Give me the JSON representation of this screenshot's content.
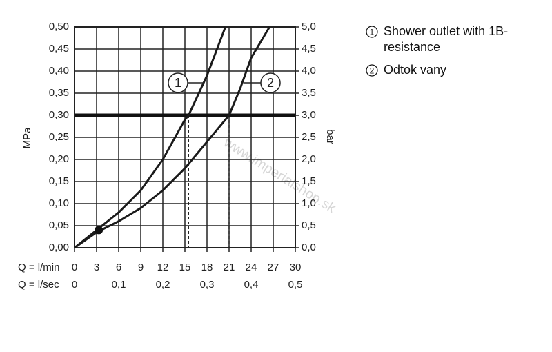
{
  "chart_data": {
    "type": "line",
    "ylabel": "MPa",
    "y2label": "bar",
    "xlabel": "Q = l/min",
    "x2label": "Q = l/sec",
    "xlim": [
      0,
      30
    ],
    "xticks": [
      0,
      3,
      6,
      9,
      12,
      15,
      18,
      21,
      24,
      27,
      30
    ],
    "x2lim": [
      0,
      0.5
    ],
    "x2ticks": [
      0,
      {
        "value": 0.1,
        "label": "0,1"
      },
      {
        "value": 0.2,
        "label": "0,2"
      },
      {
        "value": 0.3,
        "label": "0,3"
      },
      {
        "value": 0.4,
        "label": "0,4"
      },
      {
        "value": 0.5,
        "label": "0,5"
      }
    ],
    "ylim": [
      0,
      0.5
    ],
    "yticks": [
      {
        "value": 0,
        "label": "0,00"
      },
      {
        "value": 0.05,
        "label": "0,05"
      },
      {
        "value": 0.1,
        "label": "0,10"
      },
      {
        "value": 0.15,
        "label": "0,15"
      },
      {
        "value": 0.2,
        "label": "0,20"
      },
      {
        "value": 0.25,
        "label": "0,25"
      },
      {
        "value": 0.3,
        "label": "0,30"
      },
      {
        "value": 0.35,
        "label": "0,35"
      },
      {
        "value": 0.4,
        "label": "0,40"
      },
      {
        "value": 0.45,
        "label": "0,45"
      },
      {
        "value": 0.5,
        "label": "0,50"
      }
    ],
    "y2lim": [
      0,
      5
    ],
    "y2ticks": [
      {
        "value": 0,
        "label": "0,0"
      },
      {
        "value": 0.5,
        "label": "0,5"
      },
      {
        "value": 1,
        "label": "1,0"
      },
      {
        "value": 1.5,
        "label": "1,5"
      },
      {
        "value": 2,
        "label": "2,0"
      },
      {
        "value": 2.5,
        "label": "2,5"
      },
      {
        "value": 3,
        "label": "3,0"
      },
      {
        "value": 3.5,
        "label": "3,5"
      },
      {
        "value": 4,
        "label": "4,0"
      },
      {
        "value": 4.5,
        "label": "4,5"
      },
      {
        "value": 5,
        "label": "5,0"
      }
    ],
    "grid": true,
    "reference_line": 0.3,
    "drop_lines": [
      15.5,
      21
    ],
    "point": {
      "x": 3.3,
      "y": 0.04
    },
    "watermark": "www.imperialshop.sk",
    "series": [
      {
        "name": "Shower outlet with 1B-resistance",
        "label": "1",
        "color": "#1a1a1a",
        "x": [
          0,
          3,
          6,
          9,
          12,
          15,
          15.5,
          18,
          20.5
        ],
        "values": [
          0,
          0.04,
          0.08,
          0.13,
          0.2,
          0.29,
          0.3,
          0.39,
          0.5
        ]
      },
      {
        "name": "Odtok vany",
        "label": "2",
        "color": "#1a1a1a",
        "x": [
          0,
          3,
          6,
          9,
          12,
          15,
          18,
          21,
          22.5,
          24,
          26.5
        ],
        "values": [
          0,
          0.035,
          0.06,
          0.09,
          0.13,
          0.18,
          0.24,
          0.3,
          0.36,
          0.43,
          0.5
        ]
      }
    ]
  }
}
